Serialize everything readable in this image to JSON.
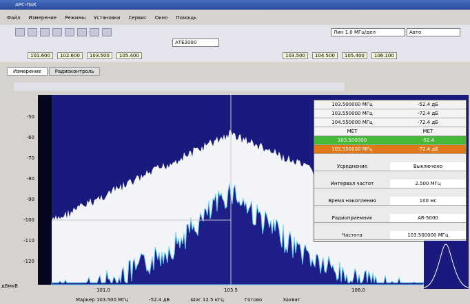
{
  "window": {
    "title": "АРС-ПаК"
  },
  "menu": [
    "Файл",
    "Измерение",
    "Режимы",
    "Установки",
    "Сервис",
    "Окно",
    "Помощь"
  ],
  "toolbar": {
    "combo1": "Лин 1.0 МГц/дел",
    "combo2": "Авто",
    "combo3": "АТЕ2000"
  },
  "markers": [
    "101.600",
    "102.600",
    "103.500",
    "105.400"
  ],
  "markers_right": [
    "103.500",
    "104.500",
    "105.400",
    "106.100"
  ],
  "tabs": [
    "Измерение",
    "Радиоконтроль"
  ],
  "plot": {
    "y_labels": [
      "-50",
      "-60",
      "-70",
      "-80",
      "-90",
      "-100",
      "-110",
      "-120"
    ],
    "x_labels": [
      "101.0",
      "103.5",
      "106.0"
    ],
    "corner": "дБмкВ"
  },
  "panel": {
    "rows": [
      [
        "103.500000 МГц",
        "-52.4 дБ"
      ],
      [
        "103.550000 МГц",
        "-72.4 дБ"
      ],
      [
        "104.550000 МГц",
        "-72.4 дБ"
      ],
      [
        "МЕТ",
        "МЕТ"
      ]
    ],
    "green": [
      "103.500000",
      "-52.4"
    ],
    "orange": [
      "103.550000 МГц",
      "-72.4 дБ"
    ],
    "fields": [
      [
        "Усреднение",
        "Выключено"
      ],
      [
        "Интервал частот",
        "2.500 МГц"
      ],
      [
        "Время накопления",
        "100 мс"
      ],
      [
        "Радиоприемник",
        "AR-5000"
      ],
      [
        "Частота",
        "103.500000 МГц"
      ]
    ]
  },
  "status": [
    "Маркер 103.500 МГц",
    "-52.4 дБ",
    "Шаг 12.5 кГц",
    "Готово",
    "Захват"
  ]
}
